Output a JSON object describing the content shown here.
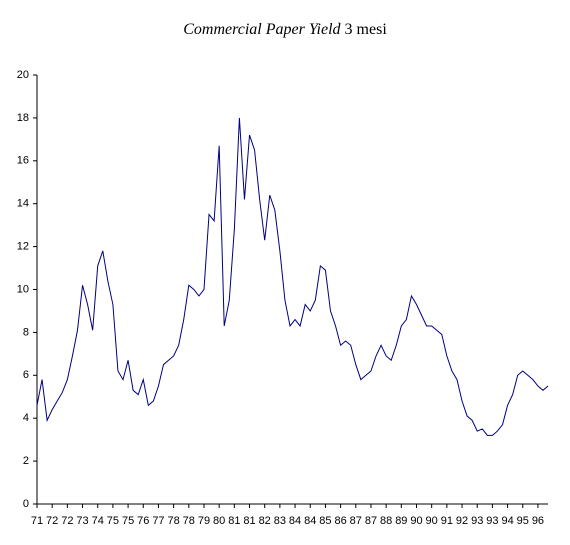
{
  "chart_data": {
    "type": "line",
    "title": [
      "Commercial Paper Yield",
      "3 mesi"
    ],
    "categories": [
      "71",
      null,
      null,
      "72",
      null,
      null,
      "72",
      null,
      null,
      "73",
      null,
      null,
      "74",
      null,
      null,
      "75",
      null,
      null,
      "75",
      null,
      null,
      "76",
      null,
      null,
      "77",
      null,
      null,
      "78",
      null,
      null,
      "78",
      null,
      null,
      "79",
      null,
      null,
      "80",
      null,
      null,
      "81",
      null,
      null,
      "81",
      null,
      null,
      "82",
      null,
      null,
      "83",
      null,
      null,
      "84",
      null,
      null,
      "84",
      null,
      null,
      "85",
      null,
      null,
      "86",
      null,
      null,
      "87",
      null,
      null,
      "87",
      null,
      null,
      "88",
      null,
      null,
      "89",
      null,
      null,
      "90",
      null,
      null,
      "90",
      null,
      null,
      "91",
      null,
      null,
      "92",
      null,
      null,
      "93",
      null,
      null,
      "93",
      null,
      null,
      "94",
      null,
      null,
      "95",
      null,
      null,
      "96",
      null,
      null
    ],
    "values": [
      4.6,
      5.8,
      3.9,
      4.4,
      4.8,
      5.2,
      5.8,
      6.9,
      8.1,
      10.2,
      9.3,
      8.1,
      11.1,
      11.8,
      10.4,
      9.3,
      6.2,
      5.8,
      6.7,
      5.3,
      5.1,
      5.8,
      4.6,
      4.8,
      5.5,
      6.5,
      6.7,
      6.9,
      7.4,
      8.6,
      10.2,
      10.0,
      9.7,
      10.0,
      13.5,
      13.2,
      16.7,
      8.3,
      9.5,
      12.8,
      18.0,
      14.2,
      17.2,
      16.5,
      14.2,
      12.3,
      14.4,
      13.7,
      11.8,
      9.5,
      8.3,
      8.6,
      8.3,
      9.3,
      9.0,
      9.5,
      11.1,
      10.9,
      9.0,
      8.3,
      7.4,
      7.6,
      7.4,
      6.5,
      5.8,
      6.0,
      6.2,
      6.9,
      7.4,
      6.9,
      6.7,
      7.4,
      8.3,
      8.6,
      9.7,
      9.3,
      8.8,
      8.3,
      8.3,
      8.1,
      7.9,
      6.9,
      6.2,
      5.8,
      4.8,
      4.1,
      3.9,
      3.4,
      3.5,
      3.2,
      3.2,
      3.4,
      3.7,
      4.6,
      5.1,
      6.0,
      6.2,
      6.0,
      5.8,
      5.5,
      5.3,
      5.5
    ],
    "color": "#000080",
    "ylim": [
      0,
      20
    ],
    "yticks": [
      0,
      2,
      4,
      6,
      8,
      10,
      12,
      14,
      16,
      18,
      20
    ]
  }
}
